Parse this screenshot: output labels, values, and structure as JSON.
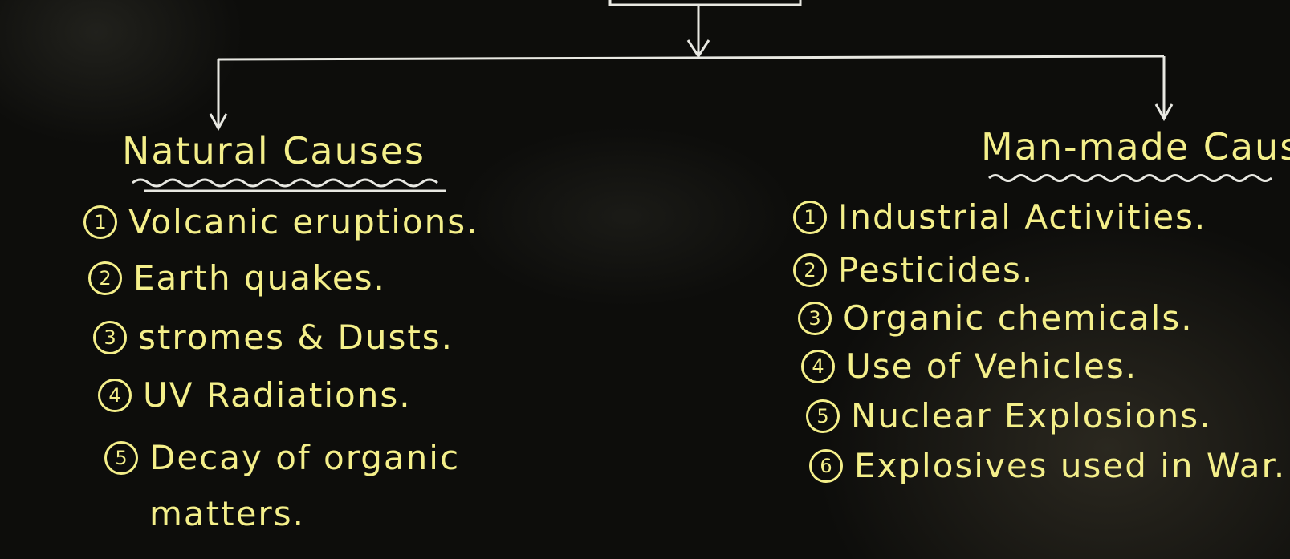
{
  "diagram": {
    "natural": {
      "heading": "Natural Causes",
      "items": [
        {
          "num": "1",
          "text": "Volcanic eruptions."
        },
        {
          "num": "2",
          "text": "Earth quakes."
        },
        {
          "num": "3",
          "text": "stromes & Dusts."
        },
        {
          "num": "4",
          "text": "UV Radiations."
        },
        {
          "num": "5",
          "text": "Decay of organic matters."
        }
      ]
    },
    "manmade": {
      "heading": "Man-made Cause",
      "items": [
        {
          "num": "1",
          "text": "Industrial Activities."
        },
        {
          "num": "2",
          "text": "Pesticides."
        },
        {
          "num": "3",
          "text": "Organic chemicals."
        },
        {
          "num": "4",
          "text": "Use of Vehicles."
        },
        {
          "num": "5",
          "text": "Nuclear Explosions."
        },
        {
          "num": "6",
          "text": "Explosives used in War."
        }
      ]
    }
  },
  "colors": {
    "board": "#0d0d0b",
    "chalk_white": "#e8e8e2",
    "chalk_yellow": "#f4ef8a"
  }
}
